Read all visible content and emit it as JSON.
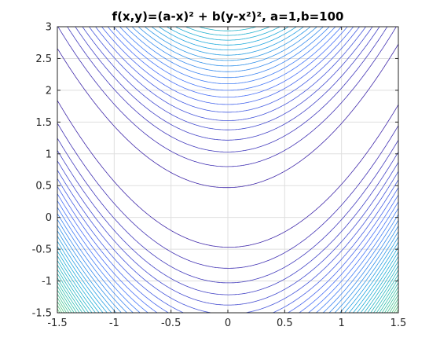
{
  "chart_data": {
    "type": "contour",
    "title": "f(x,y)=(a-x)² + b(y-x²)², a=1,b=100",
    "function": "f(x,y)=(a-x)^2 + b(y-x^2)^2",
    "parameters": {
      "a": 1,
      "b": 100
    },
    "xlabel": "",
    "ylabel": "",
    "xlim": [
      -1.5,
      1.5
    ],
    "ylim": [
      -1.5,
      3
    ],
    "xticks": [
      -1.5,
      -1,
      -0.5,
      0,
      0.5,
      1,
      1.5
    ],
    "xtick_labels": [
      "-1.5",
      "-1",
      "-0.5",
      "0",
      "0.5",
      "1",
      "1.5"
    ],
    "yticks": [
      -1.5,
      -1,
      -0.5,
      0,
      0.5,
      1,
      1.5,
      2,
      2.5,
      3
    ],
    "ytick_labels": [
      "-1.5",
      "-1",
      "-0.5",
      "0",
      "0.5",
      "1",
      "1.5",
      "2",
      "2.5",
      "3"
    ],
    "grid": true,
    "box": true,
    "colormap": "parula",
    "colormap_colors": [
      "#3e26a8",
      "#4772fa",
      "#1ba9db",
      "#2cbfa8",
      "#69c96a",
      "#c7c03b",
      "#fcc131",
      "#f9fb0e"
    ],
    "contour_levels": {
      "count": 60,
      "min": 23,
      "max": 2500
    }
  }
}
